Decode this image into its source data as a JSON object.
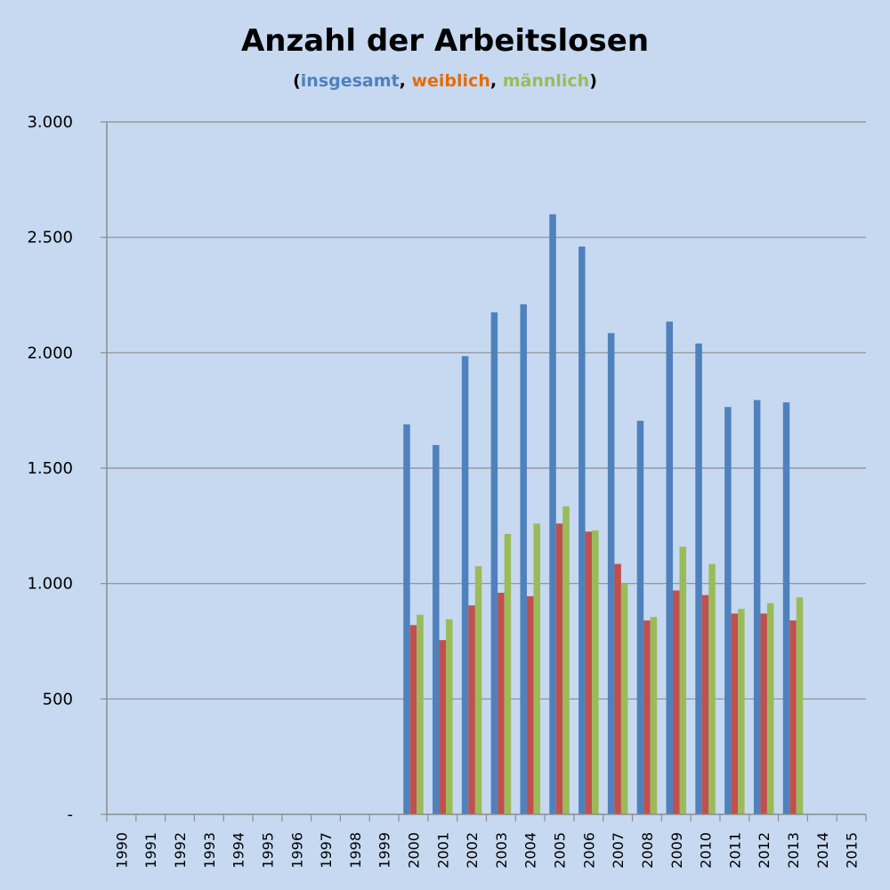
{
  "chart_data": {
    "type": "bar",
    "title": "Anzahl der Arbeitslosen",
    "subtitle_parts": {
      "open": "(",
      "insgesamt": "insgesamt",
      "sep1": ", ",
      "weiblich": "weiblich",
      "sep2": ", ",
      "maennlich": "männlich",
      "close": ")"
    },
    "categories": [
      "1990",
      "1991",
      "1992",
      "1993",
      "1994",
      "1995",
      "1996",
      "1997",
      "1998",
      "1999",
      "2000",
      "2001",
      "2002",
      "2003",
      "2004",
      "2005",
      "2006",
      "2007",
      "2008",
      "2009",
      "2010",
      "2011",
      "2012",
      "2013",
      "2014",
      "2015"
    ],
    "series": [
      {
        "name": "insgesamt",
        "color": "#4f81bd",
        "values": [
          null,
          null,
          null,
          null,
          null,
          null,
          null,
          null,
          null,
          null,
          1690,
          1600,
          1985,
          2175,
          2210,
          2600,
          2460,
          2085,
          1705,
          2135,
          2040,
          1765,
          1795,
          1785,
          null,
          null
        ]
      },
      {
        "name": "weiblich",
        "color": "#c0504d",
        "values": [
          null,
          null,
          null,
          null,
          null,
          null,
          null,
          null,
          null,
          null,
          820,
          755,
          905,
          960,
          945,
          1260,
          1225,
          1085,
          840,
          970,
          950,
          870,
          870,
          840,
          null,
          null
        ]
      },
      {
        "name": "männlich",
        "color": "#9bbb59",
        "values": [
          null,
          null,
          null,
          null,
          null,
          null,
          null,
          null,
          null,
          null,
          865,
          845,
          1075,
          1215,
          1260,
          1335,
          1230,
          1000,
          855,
          1160,
          1085,
          890,
          915,
          940,
          null,
          null
        ]
      }
    ],
    "ylim": [
      0,
      3000
    ],
    "yticks": [
      0,
      500,
      1000,
      1500,
      2000,
      2500,
      3000
    ],
    "ytick_labels": [
      "-",
      "500",
      "1.000",
      "1.500",
      "2.000",
      "2.500",
      "3.000"
    ],
    "grid": true,
    "legend": "none"
  }
}
